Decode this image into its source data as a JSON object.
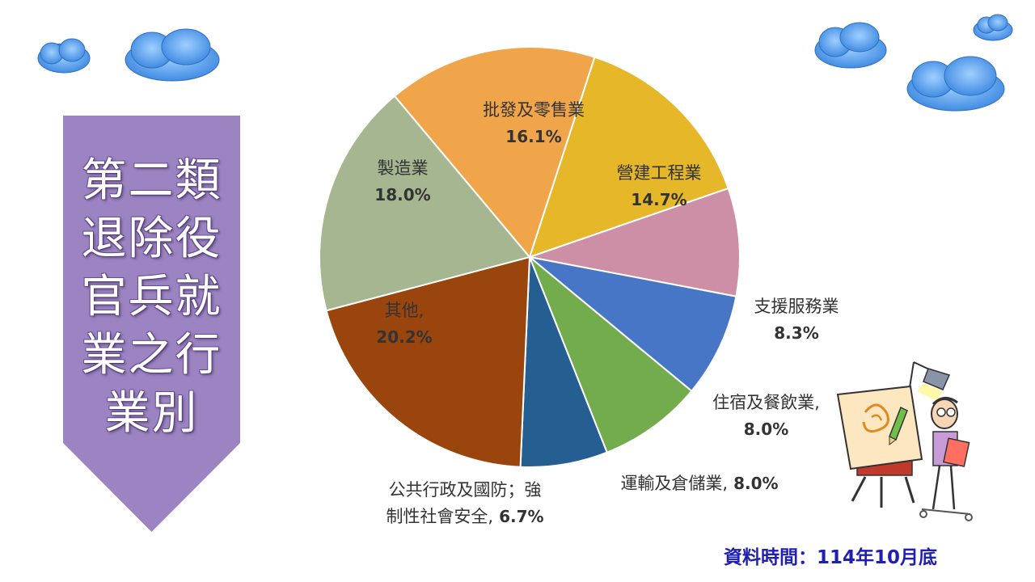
{
  "banner": {
    "title_lines": [
      "第二類",
      "退除役",
      "官兵就",
      "業之行",
      "業別"
    ],
    "color": "#9b84c1"
  },
  "source_note": "資料時間：114年10月底",
  "chart_data": {
    "type": "pie",
    "title": "",
    "start_angle_deg": 0,
    "direction": "clockwise",
    "slices": [
      {
        "name": "營建工程業",
        "value": 14.7,
        "pct_label": "14.7%",
        "color": "#e6b729"
      },
      {
        "name": "支援服務業",
        "value": 8.3,
        "pct_label": "8.3%",
        "color": "#cd8fa6"
      },
      {
        "name": "住宿及餐飲業,",
        "value": 8.0,
        "pct_label": "8.0%",
        "color": "#4876c6"
      },
      {
        "name": "運輸及倉儲業,",
        "value": 8.0,
        "pct_label": "8.0%",
        "color": "#72ac4c"
      },
      {
        "name": "公共行政及國防；強制性社會安全,",
        "value": 6.7,
        "pct_label": "6.7%",
        "color": "#255f92"
      },
      {
        "name": "其他,",
        "value": 20.2,
        "pct_label": "20.2%",
        "color": "#9b450e"
      },
      {
        "name": "製造業",
        "value": 18.0,
        "pct_label": "18.0%",
        "color": "#a6b691"
      },
      {
        "name": "批發及零售業",
        "value": 16.1,
        "pct_label": "16.1%",
        "color": "#f1a54a"
      }
    ],
    "label_text": {
      "construction": "營建工程業",
      "support": "支援服務業",
      "lodging": "住宿及餐飲業,",
      "transport": "運輸及倉儲業,",
      "transport_pct": " 8.0%",
      "public_line1": "公共行政及國防；強",
      "public_line2": "制性社會安全,",
      "public_pct": " 6.7%",
      "other": "其他,",
      "manufacturing": "製造業",
      "wholesale": "批發及零售業"
    }
  }
}
